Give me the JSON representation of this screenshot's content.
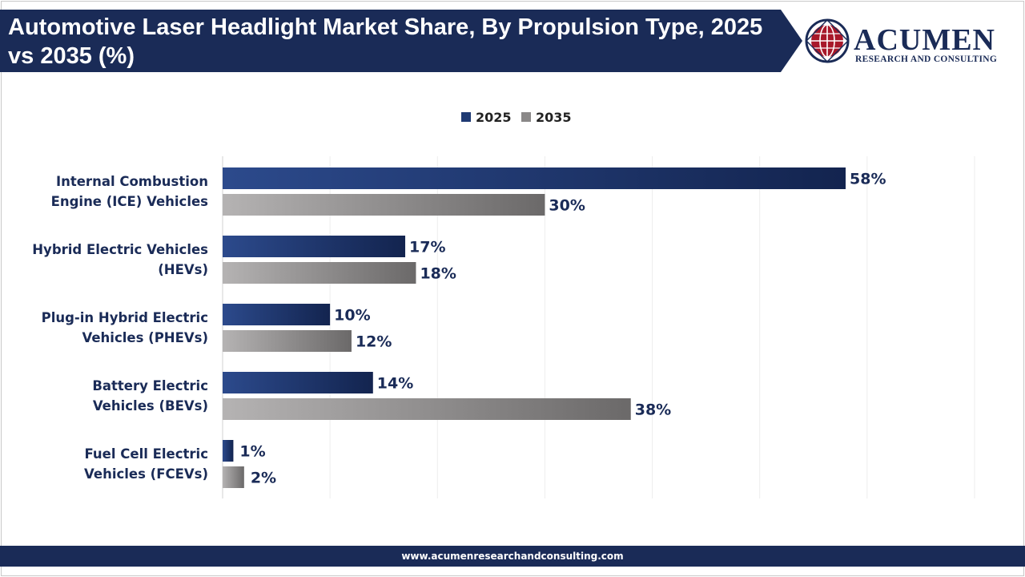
{
  "title": "Automotive Laser Headlight Market Share, By Propulsion Type, 2025 vs 2035 (%)",
  "logo": {
    "name": "ACUMEN",
    "tagline": "RESEARCH AND CONSULTING"
  },
  "footer": {
    "url": "www.acumenresearchandconsulting.com"
  },
  "colors": {
    "banner": "#1a2b57",
    "series_2025": "#1f3a73",
    "series_2035": "#7d7b7b",
    "label": "#1a2b57"
  },
  "chart_data": {
    "type": "bar",
    "orientation": "horizontal",
    "categories": [
      "Internal Combustion Engine (ICE) Vehicles",
      "Hybrid Electric Vehicles (HEVs)",
      "Plug-in Hybrid Electric Vehicles (PHEVs)",
      "Battery Electric Vehicles (BEVs)",
      "Fuel Cell Electric Vehicles (FCEVs)"
    ],
    "category_lines": [
      [
        "Internal Combustion",
        "Engine (ICE) Vehicles"
      ],
      [
        "Hybrid Electric Vehicles",
        "(HEVs)"
      ],
      [
        "Plug-in Hybrid Electric",
        "Vehicles (PHEVs)"
      ],
      [
        "Battery Electric",
        "Vehicles (BEVs)"
      ],
      [
        "Fuel Cell Electric",
        "Vehicles (FCEVs)"
      ]
    ],
    "series": [
      {
        "name": "2025",
        "values": [
          58,
          17,
          10,
          14,
          1
        ]
      },
      {
        "name": "2035",
        "values": [
          30,
          18,
          12,
          38,
          2
        ]
      }
    ],
    "data_labels_2025": [
      "58%",
      "17%",
      "10%",
      "14%",
      "1%"
    ],
    "data_labels_2035": [
      "30%",
      "18%",
      "12%",
      "38%",
      "2%"
    ],
    "xlim": [
      0,
      70
    ],
    "legend": "top-center",
    "grid": true
  }
}
